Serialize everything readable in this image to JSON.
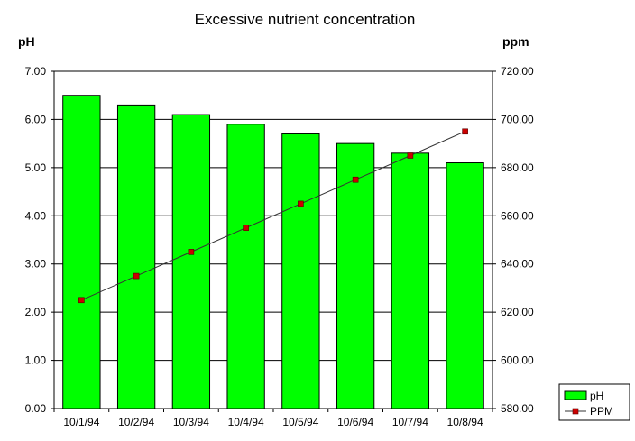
{
  "chart_data": {
    "type": "bar",
    "title": "Excessive nutrient concentration",
    "ylabel": "pH",
    "y2label": "ppm",
    "categories": [
      "10/1/94",
      "10/2/94",
      "10/3/94",
      "10/4/94",
      "10/5/94",
      "10/6/94",
      "10/7/94",
      "10/8/94"
    ],
    "series": [
      {
        "name": "pH",
        "type": "bar",
        "axis": "left",
        "color": "#00ff00",
        "values": [
          6.5,
          6.3,
          6.1,
          5.9,
          5.7,
          5.5,
          5.3,
          5.1
        ]
      },
      {
        "name": "PPM",
        "type": "line",
        "axis": "right",
        "color": "#333333",
        "marker_color": "#cc0000",
        "values": [
          625,
          635,
          645,
          655,
          665,
          675,
          685,
          695
        ]
      }
    ],
    "ylim": [
      0,
      7
    ],
    "y2lim": [
      580,
      720
    ],
    "yticks": [
      "0.00",
      "1.00",
      "2.00",
      "3.00",
      "4.00",
      "5.00",
      "6.00",
      "7.00"
    ],
    "y2ticks": [
      "580.00",
      "600.00",
      "620.00",
      "640.00",
      "660.00",
      "680.00",
      "700.00",
      "720.00"
    ],
    "grid": true,
    "legend_placement": "bottom-right"
  }
}
